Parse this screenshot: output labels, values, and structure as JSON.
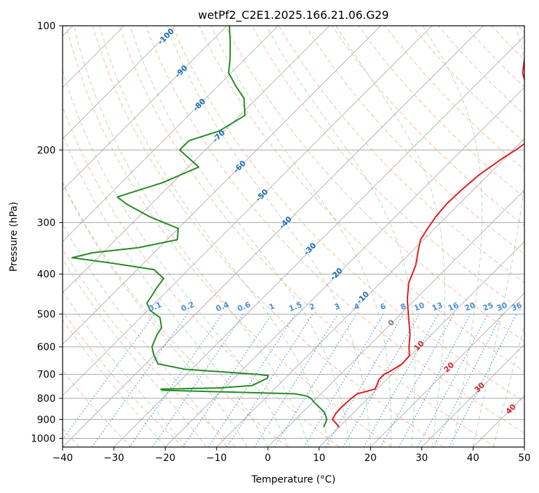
{
  "chart_data": {
    "type": "line",
    "title": "wetPf2_C2E1.2025.166.21.06.G29",
    "xlabel": "Temperature (°C)",
    "ylabel": "Pressure (hPa)",
    "xlim": [
      -40,
      50
    ],
    "ylim": [
      1050,
      100
    ],
    "y_scale": "log",
    "x_ticks": [
      -40,
      -30,
      -20,
      -10,
      0,
      10,
      20,
      30,
      40,
      50
    ],
    "x_tick_labels": [
      "−40",
      "−30",
      "−20",
      "−10",
      "0",
      "10",
      "20",
      "30",
      "40",
      "50"
    ],
    "y_ticks": [
      100,
      200,
      300,
      400,
      500,
      600,
      700,
      800,
      900,
      1000
    ],
    "y_tick_labels": [
      "100",
      "200",
      "300",
      "400",
      "500",
      "600",
      "700",
      "800",
      "900",
      "1000"
    ],
    "grid": true,
    "diagram": "skew-T log-p",
    "colors": {
      "temperature": "#e31a1c",
      "dewpoint": "#228b22",
      "isotherm": "#a6a6a6",
      "isobar": "#a6a6a6",
      "dry_adiabat": "#f4a582",
      "moist_adiabat": "#86c286",
      "mixing_ratio": "#4a90d9",
      "isotherm_label": "#1f6fb4",
      "dry_adiabat_label": "#d62728",
      "zero_label": "#7f7f7f"
    },
    "series": [
      {
        "key": "temperature",
        "pressure": [
          940,
          920,
          900,
          870,
          840,
          800,
          780,
          760,
          740,
          720,
          700,
          690,
          660,
          630,
          600,
          560,
          500,
          460,
          420,
          380,
          350,
          330,
          310,
          290,
          270,
          250,
          230,
          210,
          200,
          190,
          180,
          170,
          160,
          150,
          140,
          130,
          120,
          110,
          100
        ],
        "temp": [
          10,
          8.7,
          7.2,
          6.7,
          6.6,
          6.8,
          7.1,
          9.6,
          9.1,
          8.5,
          8.5,
          9.0,
          10.0,
          9.8,
          8.0,
          5.8,
          1.5,
          -1.6,
          -4.5,
          -6.6,
          -9.0,
          -10.6,
          -11.4,
          -12.1,
          -12.5,
          -12.3,
          -11.8,
          -10.5,
          -9.5,
          -8.8,
          -9.5,
          -10.6,
          -13.1,
          -16.6,
          -19.9,
          -23.2,
          -25.6,
          -28.0,
          -31.2
        ]
      },
      {
        "key": "dewpoint",
        "pressure": [
          940,
          920,
          900,
          880,
          860,
          840,
          820,
          800,
          790,
          780,
          770,
          765,
          760,
          755,
          745,
          735,
          715,
          705,
          700,
          680,
          660,
          630,
          600,
          560,
          540,
          510,
          490,
          470,
          450,
          430,
          410,
          390,
          375,
          365,
          355,
          345,
          330,
          310,
          290,
          270,
          260,
          240,
          220,
          200,
          190,
          180,
          165,
          150,
          140,
          130,
          120,
          110,
          100
        ],
        "dwpt": [
          7.0,
          6.6,
          6.1,
          5.1,
          3.9,
          2.2,
          0.5,
          -1.1,
          -2.3,
          -5.1,
          -22.2,
          -31.5,
          -32.1,
          -21.0,
          -15.1,
          -14.5,
          -13.5,
          -13.8,
          -15.9,
          -31.4,
          -37.6,
          -40.0,
          -42.1,
          -43.5,
          -43.9,
          -46.2,
          -49.5,
          -51.6,
          -52.1,
          -52.7,
          -53.1,
          -56.7,
          -67.0,
          -75.0,
          -72.0,
          -64.0,
          -58.0,
          -60.0,
          -68.0,
          -75.0,
          -78.0,
          -72.0,
          -68.0,
          -75.0,
          -75.0,
          -71.0,
          -69.0,
          -72.5,
          -76.5,
          -80.5,
          -83.0,
          -86.0,
          -89.5
        ]
      }
    ],
    "isotherm_labels": [
      "-100",
      "-90",
      "-80",
      "-70",
      "-60",
      "-50",
      "-40",
      "-30",
      "-20",
      "-10",
      "0",
      "10",
      "20",
      "30",
      "40"
    ],
    "mixing_ratio_labels": [
      "0.1",
      "0.2",
      "0.4",
      "0.6",
      "1",
      "1.5",
      "2",
      "3",
      "4",
      "6",
      "8",
      "10",
      "13",
      "16",
      "20",
      "25",
      "30",
      "36"
    ]
  }
}
